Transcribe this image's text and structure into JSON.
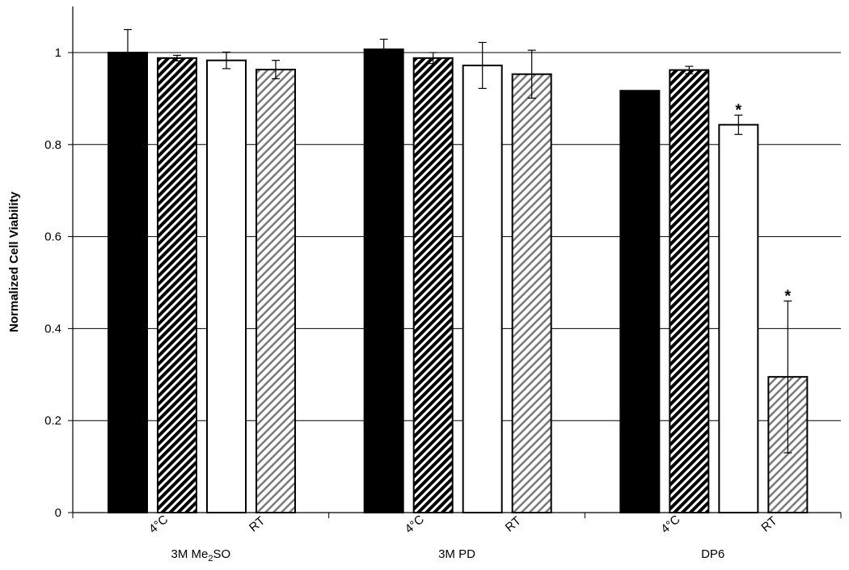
{
  "chart_data": {
    "type": "bar",
    "title": "",
    "xlabel": "",
    "ylabel": "Normalized Cell Viability",
    "ylim": [
      0,
      1
    ],
    "yticks": [
      "0",
      "0.2",
      "0.4",
      "0.6",
      "0.8",
      "1"
    ],
    "grid": true,
    "groups": [
      {
        "label_main": "3M Me",
        "label_sub": "2",
        "label_tail": "SO",
        "sub_labels": [
          "4°C",
          "RT"
        ],
        "bars": [
          {
            "value": 1.0,
            "error": 0.05,
            "fill": "solid-black",
            "sig": ""
          },
          {
            "value": 0.988,
            "error": 0.006,
            "fill": "hatch-dark",
            "sig": ""
          },
          {
            "value": 0.983,
            "error": 0.018,
            "fill": "white",
            "sig": ""
          },
          {
            "value": 0.963,
            "error": 0.02,
            "fill": "hatch-light",
            "sig": ""
          }
        ]
      },
      {
        "label_main": "3M PD",
        "label_sub": "",
        "label_tail": "",
        "sub_labels": [
          "4°C",
          "RT"
        ],
        "bars": [
          {
            "value": 1.007,
            "error": 0.022,
            "fill": "solid-black",
            "sig": ""
          },
          {
            "value": 0.988,
            "error": 0.012,
            "fill": "hatch-dark",
            "sig": ""
          },
          {
            "value": 0.972,
            "error": 0.05,
            "fill": "white",
            "sig": ""
          },
          {
            "value": 0.953,
            "error": 0.052,
            "fill": "hatch-light",
            "sig": ""
          }
        ]
      },
      {
        "label_main": "DP6",
        "label_sub": "",
        "label_tail": "",
        "sub_labels": [
          "4°C",
          "RT"
        ],
        "bars": [
          {
            "value": 0.917,
            "error": 0.0,
            "fill": "solid-black",
            "sig": ""
          },
          {
            "value": 0.962,
            "error": 0.008,
            "fill": "hatch-dark",
            "sig": ""
          },
          {
            "value": 0.843,
            "error": 0.021,
            "fill": "white",
            "sig": "*"
          },
          {
            "value": 0.295,
            "error": 0.165,
            "fill": "hatch-light",
            "sig": "*"
          }
        ]
      }
    ]
  }
}
